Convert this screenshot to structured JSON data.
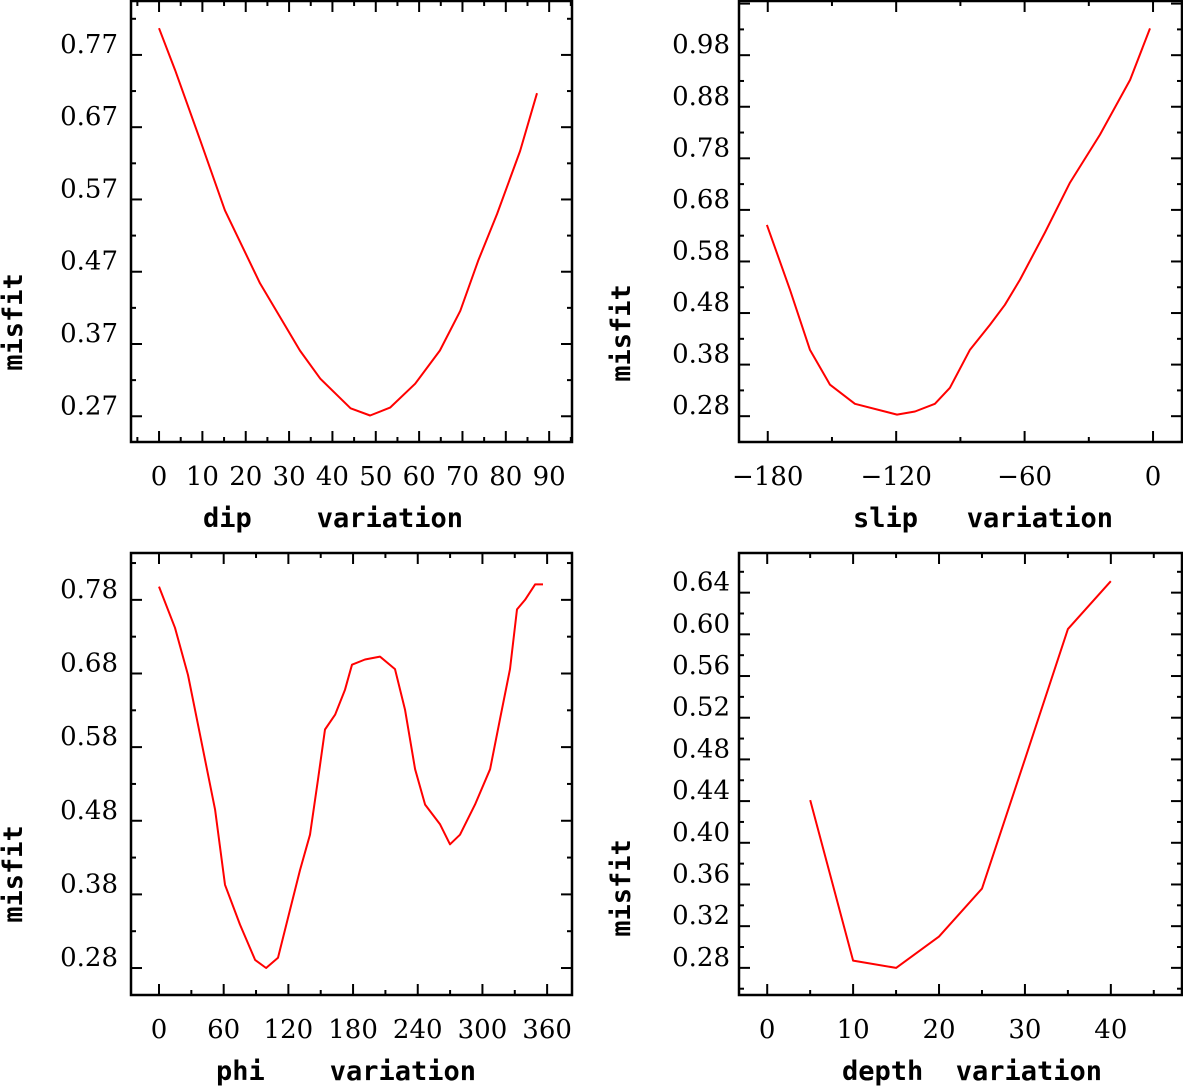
{
  "chart_data": [
    {
      "type": "line",
      "title": "",
      "xlabel": "dip    variation",
      "ylabel": "misfit",
      "xlim": [
        -6.7,
        95.5
      ],
      "ylim": [
        0.233,
        0.846
      ],
      "xticks": [
        0,
        10,
        20,
        30,
        40,
        50,
        60,
        70,
        80,
        90
      ],
      "xtick_labels": [
        "0",
        "10",
        "20",
        "30",
        "40",
        "50",
        "60",
        "70",
        "80",
        "90"
      ],
      "xminor": 5,
      "yticks": [
        0.27,
        0.37,
        0.47,
        0.57,
        0.67,
        0.77
      ],
      "ytick_labels": [
        "0.27",
        "0.37",
        "0.47",
        "0.57",
        "0.67",
        "0.77"
      ],
      "grid": false,
      "color": "#ff0000",
      "x": [
        0,
        3.7,
        9.5,
        15.2,
        23.3,
        32.5,
        37.2,
        44.2,
        48.7,
        53.3,
        59.1,
        64.8,
        69.5,
        73.6,
        78,
        83.3,
        87.2
      ],
      "y": [
        0.807,
        0.749,
        0.652,
        0.555,
        0.454,
        0.361,
        0.322,
        0.281,
        0.271,
        0.282,
        0.315,
        0.361,
        0.416,
        0.485,
        0.55,
        0.637,
        0.717
      ]
    },
    {
      "type": "line",
      "title": "",
      "xlabel": "slip   variation",
      "ylabel": "misfit",
      "xlim": [
        -193.9,
        14
      ],
      "ylim": [
        0.228,
        1.087
      ],
      "xticks": [
        -180,
        -120,
        -60,
        0
      ],
      "xtick_labels": [
        "−180",
        "−120",
        "−60",
        "0"
      ],
      "xminor": 30,
      "yticks": [
        0.28,
        0.38,
        0.48,
        0.58,
        0.68,
        0.78,
        0.88,
        0.98
      ],
      "ytick_labels": [
        "0.28",
        "0.38",
        "0.48",
        "0.58",
        "0.68",
        "0.78",
        "0.88",
        "0.98"
      ],
      "grid": false,
      "color": "#ff0000",
      "x": [
        -180.4,
        -169.6,
        -160.3,
        -150.9,
        -139.3,
        -119.6,
        -111.2,
        -101.9,
        -94.9,
        -85.5,
        -76.2,
        -69.2,
        -62.1,
        -50.5,
        -38.8,
        -24.8,
        -10.7,
        -1.4
      ],
      "y": [
        0.651,
        0.525,
        0.409,
        0.341,
        0.304,
        0.283,
        0.289,
        0.304,
        0.335,
        0.409,
        0.457,
        0.496,
        0.545,
        0.636,
        0.733,
        0.826,
        0.932,
        1.032
      ]
    },
    {
      "type": "line",
      "title": "",
      "xlabel": "phi    variation",
      "ylabel": "misfit",
      "xlim": [
        -26.9,
        384
      ],
      "ylim": [
        0.242,
        0.845
      ],
      "xticks": [
        0,
        60,
        120,
        180,
        240,
        300,
        360
      ],
      "xtick_labels": [
        "0",
        "60",
        "120",
        "180",
        "240",
        "300",
        "360"
      ],
      "xminor": 30,
      "yticks": [
        0.28,
        0.38,
        0.48,
        0.58,
        0.68,
        0.78
      ],
      "ytick_labels": [
        "0.28",
        "0.38",
        "0.48",
        "0.58",
        "0.68",
        "0.78"
      ],
      "grid": false,
      "color": "#ff0000",
      "x": [
        0,
        14.8,
        26.9,
        38.0,
        52.0,
        61.2,
        75.1,
        89.1,
        99.3,
        110.4,
        121.5,
        130.8,
        140.1,
        147.5,
        154.0,
        163.3,
        172.5,
        179.0,
        191.1,
        205.0,
        218.9,
        228.2,
        237.5,
        246.8,
        260.7,
        269.9,
        279.2,
        293.1,
        307.1,
        316.3,
        325.6,
        332.1,
        339.5,
        348.8,
        356.2
      ],
      "y": [
        0.798,
        0.742,
        0.678,
        0.597,
        0.495,
        0.393,
        0.339,
        0.291,
        0.28,
        0.294,
        0.359,
        0.413,
        0.461,
        0.536,
        0.604,
        0.624,
        0.658,
        0.692,
        0.699,
        0.703,
        0.686,
        0.631,
        0.55,
        0.502,
        0.475,
        0.448,
        0.461,
        0.502,
        0.55,
        0.618,
        0.686,
        0.767,
        0.78,
        0.801,
        0.801
      ]
    },
    {
      "type": "line",
      "title": "",
      "xlabel": "depth  variation",
      "ylabel": "misfit",
      "xlim": [
        -3.4,
        48.4
      ],
      "ylim": [
        0.253,
        0.679
      ],
      "xticks": [
        0,
        10,
        20,
        30,
        40
      ],
      "xtick_labels": [
        "0",
        "10",
        "20",
        "30",
        "40"
      ],
      "xminor": 5,
      "yticks": [
        0.28,
        0.32,
        0.36,
        0.4,
        0.44,
        0.48,
        0.52,
        0.56,
        0.6,
        0.64
      ],
      "ytick_labels": [
        "0.28",
        "0.32",
        "0.36",
        "0.40",
        "0.44",
        "0.48",
        "0.52",
        "0.56",
        "0.60",
        "0.64"
      ],
      "grid": false,
      "color": "#ff0000",
      "x": [
        5,
        10,
        15,
        20,
        25,
        30,
        35,
        40
      ],
      "y": [
        0.441,
        0.287,
        0.28,
        0.31,
        0.356,
        0.48,
        0.605,
        0.651
      ]
    }
  ]
}
